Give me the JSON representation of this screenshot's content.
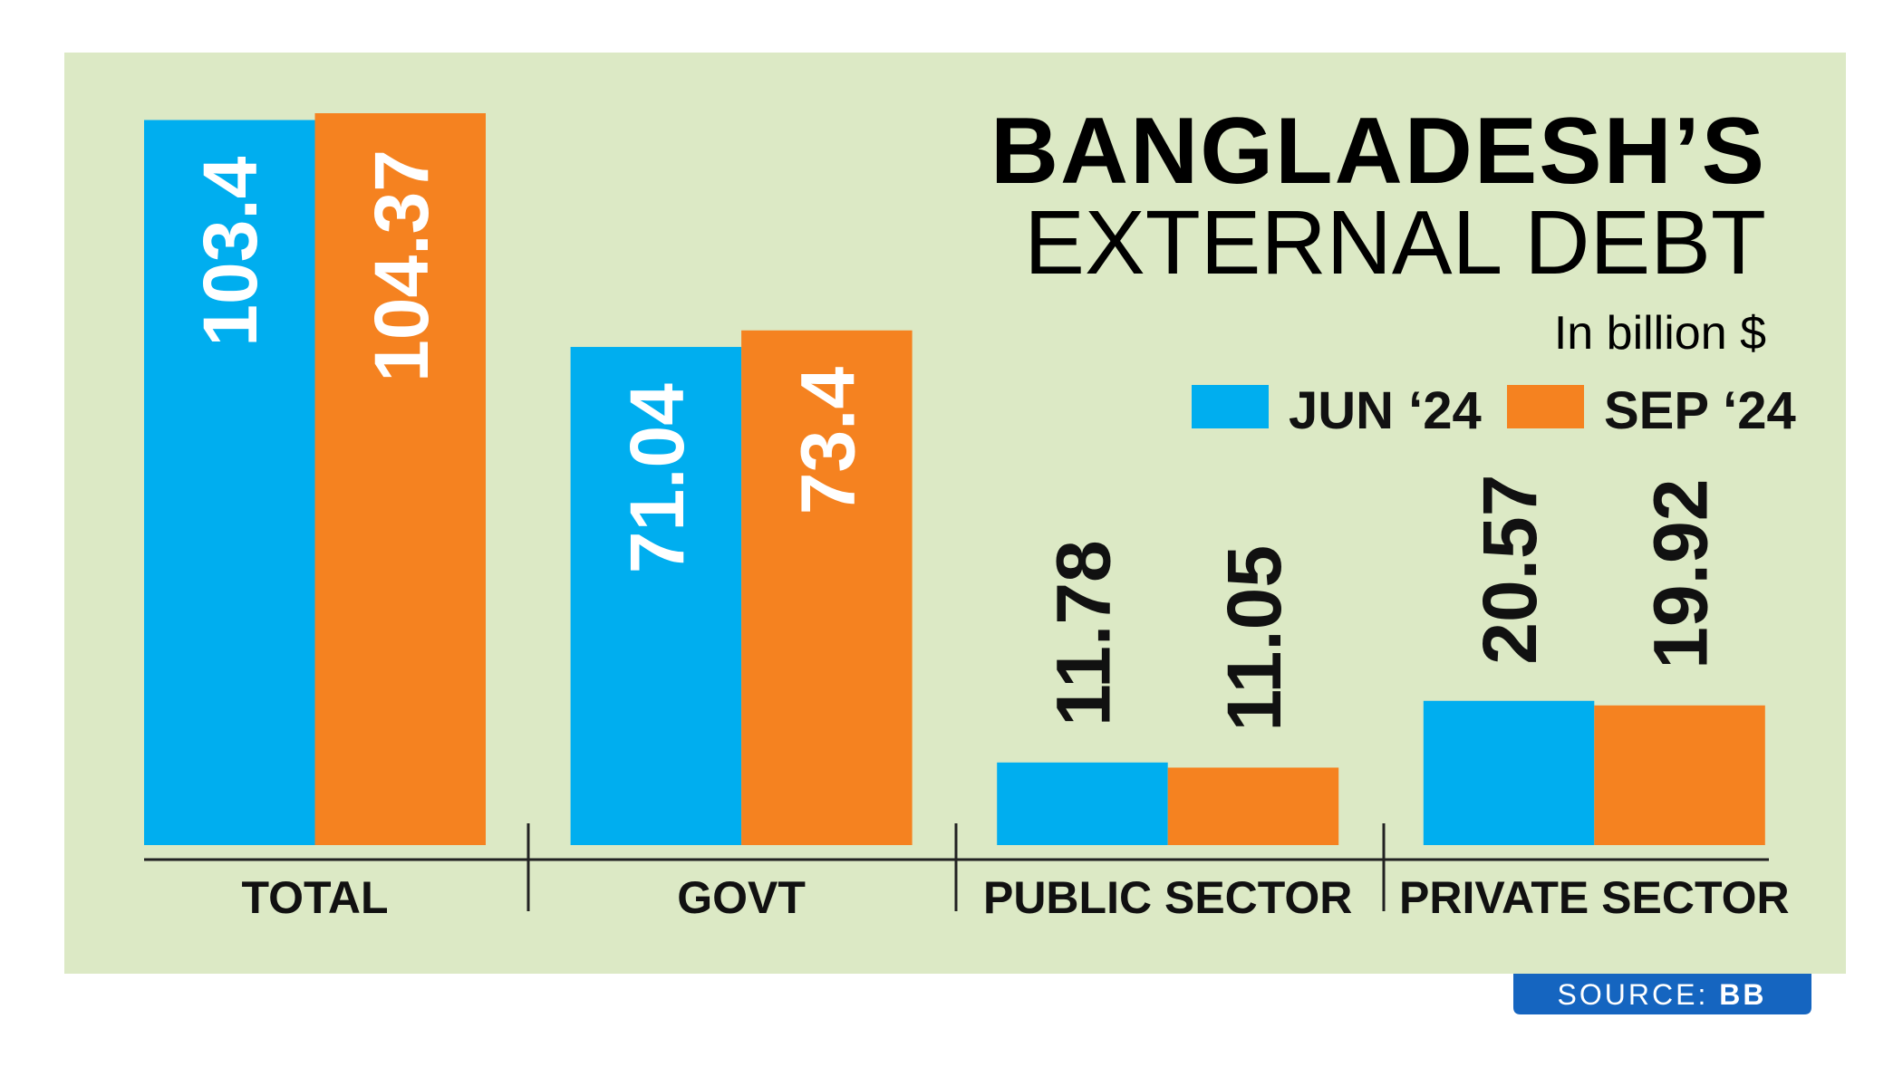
{
  "chart_data": {
    "type": "bar",
    "title": "BANGLADESH’S",
    "subtitle": "EXTERNAL DEBT",
    "unit_label": "In billion $",
    "categories": [
      "TOTAL",
      "GOVT",
      "PUBLIC SECTOR",
      "PRIVATE SECTOR"
    ],
    "series": [
      {
        "name": "JUN ‘24",
        "color": "#00aeef",
        "values": [
          103.4,
          71.04,
          11.78,
          20.57
        ]
      },
      {
        "name": "SEP ‘24",
        "color": "#f58220",
        "values": [
          104.37,
          73.4,
          11.05,
          19.92
        ]
      }
    ],
    "source_label": "SOURCE:",
    "source": "BB"
  }
}
